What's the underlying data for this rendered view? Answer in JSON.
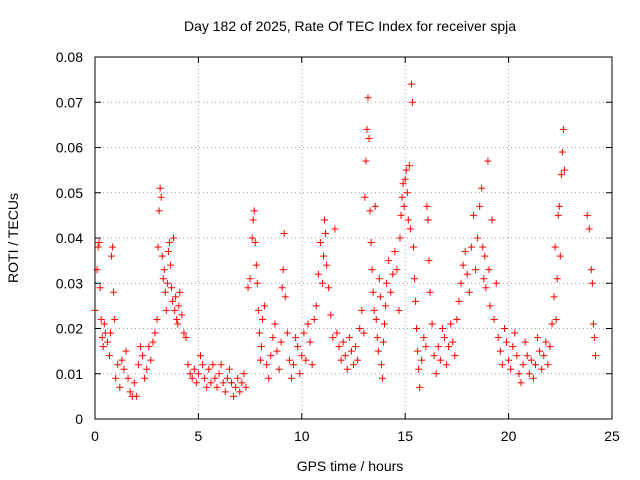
{
  "chart_data": {
    "type": "scatter",
    "title": "Day 182 of 2025, Rate Of TEC Index for receiver spja",
    "xlabel": "GPS time / hours",
    "ylabel": "ROTI / TECUs",
    "xlim": [
      0,
      25
    ],
    "ylim": [
      0,
      0.08
    ],
    "x_ticks": [
      0,
      5,
      10,
      15,
      20,
      25
    ],
    "x_tick_labels": [
      "0",
      "5",
      "10",
      "15",
      "20",
      "25"
    ],
    "y_ticks": [
      0,
      0.01,
      0.02,
      0.03,
      0.04,
      0.05,
      0.06,
      0.07,
      0.08
    ],
    "y_tick_labels": [
      "0",
      "0.01",
      "0.02",
      "0.03",
      "0.04",
      "0.05",
      "0.06",
      "0.07",
      "0.08"
    ],
    "grid": true,
    "marker": "+",
    "marker_color": "#ff0000",
    "series": [
      {
        "name": "ROTI",
        "points": [
          [
            0.0,
            0.024
          ],
          [
            0.1,
            0.033
          ],
          [
            0.15,
            0.038
          ],
          [
            0.2,
            0.039
          ],
          [
            0.25,
            0.029
          ],
          [
            0.3,
            0.022
          ],
          [
            0.35,
            0.018
          ],
          [
            0.4,
            0.016
          ],
          [
            0.45,
            0.021
          ],
          [
            0.5,
            0.019
          ],
          [
            0.6,
            0.017
          ],
          [
            0.7,
            0.014
          ],
          [
            0.75,
            0.019
          ],
          [
            0.8,
            0.036
          ],
          [
            0.85,
            0.038
          ],
          [
            0.9,
            0.028
          ],
          [
            0.95,
            0.022
          ],
          [
            1.0,
            0.009
          ],
          [
            1.1,
            0.012
          ],
          [
            1.2,
            0.007
          ],
          [
            1.3,
            0.013
          ],
          [
            1.4,
            0.011
          ],
          [
            1.5,
            0.015
          ],
          [
            1.6,
            0.009
          ],
          [
            1.7,
            0.006
          ],
          [
            1.8,
            0.005
          ],
          [
            1.9,
            0.008
          ],
          [
            2.0,
            0.005
          ],
          [
            2.1,
            0.012
          ],
          [
            2.2,
            0.016
          ],
          [
            2.3,
            0.014
          ],
          [
            2.4,
            0.009
          ],
          [
            2.5,
            0.011
          ],
          [
            2.6,
            0.016
          ],
          [
            2.7,
            0.013
          ],
          [
            2.8,
            0.017
          ],
          [
            2.9,
            0.019
          ],
          [
            3.0,
            0.022
          ],
          [
            3.05,
            0.038
          ],
          [
            3.1,
            0.046
          ],
          [
            3.15,
            0.051
          ],
          [
            3.2,
            0.049
          ],
          [
            3.25,
            0.036
          ],
          [
            3.3,
            0.031
          ],
          [
            3.35,
            0.033
          ],
          [
            3.4,
            0.028
          ],
          [
            3.45,
            0.024
          ],
          [
            3.5,
            0.03
          ],
          [
            3.55,
            0.037
          ],
          [
            3.6,
            0.039
          ],
          [
            3.65,
            0.034
          ],
          [
            3.7,
            0.029
          ],
          [
            3.75,
            0.026
          ],
          [
            3.8,
            0.04
          ],
          [
            3.85,
            0.024
          ],
          [
            3.9,
            0.027
          ],
          [
            3.95,
            0.022
          ],
          [
            4.0,
            0.021
          ],
          [
            4.05,
            0.025
          ],
          [
            4.1,
            0.028
          ],
          [
            4.2,
            0.023
          ],
          [
            4.3,
            0.019
          ],
          [
            4.4,
            0.018
          ],
          [
            4.5,
            0.012
          ],
          [
            4.6,
            0.01
          ],
          [
            4.7,
            0.009
          ],
          [
            4.8,
            0.011
          ],
          [
            4.9,
            0.008
          ],
          [
            5.0,
            0.01
          ],
          [
            5.1,
            0.014
          ],
          [
            5.2,
            0.012
          ],
          [
            5.3,
            0.009
          ],
          [
            5.4,
            0.007
          ],
          [
            5.5,
            0.011
          ],
          [
            5.6,
            0.008
          ],
          [
            5.7,
            0.012
          ],
          [
            5.8,
            0.009
          ],
          [
            5.9,
            0.007
          ],
          [
            6.0,
            0.01
          ],
          [
            6.1,
            0.012
          ],
          [
            6.2,
            0.008
          ],
          [
            6.3,
            0.006
          ],
          [
            6.4,
            0.009
          ],
          [
            6.5,
            0.011
          ],
          [
            6.6,
            0.008
          ],
          [
            6.7,
            0.005
          ],
          [
            6.8,
            0.007
          ],
          [
            6.9,
            0.009
          ],
          [
            7.0,
            0.006
          ],
          [
            7.1,
            0.008
          ],
          [
            7.2,
            0.01
          ],
          [
            7.3,
            0.007
          ],
          [
            7.4,
            0.029
          ],
          [
            7.5,
            0.031
          ],
          [
            7.6,
            0.04
          ],
          [
            7.65,
            0.044
          ],
          [
            7.7,
            0.046
          ],
          [
            7.75,
            0.039
          ],
          [
            7.8,
            0.034
          ],
          [
            7.85,
            0.03
          ],
          [
            7.9,
            0.024
          ],
          [
            7.95,
            0.019
          ],
          [
            8.0,
            0.013
          ],
          [
            8.05,
            0.016
          ],
          [
            8.1,
            0.022
          ],
          [
            8.2,
            0.025
          ],
          [
            8.3,
            0.012
          ],
          [
            8.4,
            0.009
          ],
          [
            8.5,
            0.014
          ],
          [
            8.6,
            0.018
          ],
          [
            8.7,
            0.021
          ],
          [
            8.8,
            0.015
          ],
          [
            8.9,
            0.011
          ],
          [
            9.0,
            0.017
          ],
          [
            9.05,
            0.029
          ],
          [
            9.1,
            0.033
          ],
          [
            9.15,
            0.041
          ],
          [
            9.2,
            0.027
          ],
          [
            9.3,
            0.019
          ],
          [
            9.4,
            0.013
          ],
          [
            9.5,
            0.009
          ],
          [
            9.6,
            0.012
          ],
          [
            9.7,
            0.018
          ],
          [
            9.8,
            0.016
          ],
          [
            9.9,
            0.01
          ],
          [
            10.0,
            0.014
          ],
          [
            10.1,
            0.019
          ],
          [
            10.2,
            0.013
          ],
          [
            10.3,
            0.021
          ],
          [
            10.4,
            0.017
          ],
          [
            10.5,
            0.012
          ],
          [
            10.6,
            0.022
          ],
          [
            10.7,
            0.025
          ],
          [
            10.8,
            0.032
          ],
          [
            10.9,
            0.039
          ],
          [
            11.0,
            0.03
          ],
          [
            11.05,
            0.036
          ],
          [
            11.1,
            0.044
          ],
          [
            11.15,
            0.041
          ],
          [
            11.2,
            0.034
          ],
          [
            11.3,
            0.029
          ],
          [
            11.4,
            0.023
          ],
          [
            11.5,
            0.018
          ],
          [
            11.6,
            0.042
          ],
          [
            11.7,
            0.019
          ],
          [
            11.8,
            0.016
          ],
          [
            11.9,
            0.013
          ],
          [
            12.0,
            0.017
          ],
          [
            12.1,
            0.014
          ],
          [
            12.2,
            0.011
          ],
          [
            12.3,
            0.018
          ],
          [
            12.4,
            0.015
          ],
          [
            12.5,
            0.012
          ],
          [
            12.6,
            0.016
          ],
          [
            12.7,
            0.013
          ],
          [
            12.8,
            0.02
          ],
          [
            12.9,
            0.024
          ],
          [
            13.0,
            0.019
          ],
          [
            13.05,
            0.049
          ],
          [
            13.1,
            0.057
          ],
          [
            13.15,
            0.064
          ],
          [
            13.2,
            0.071
          ],
          [
            13.25,
            0.062
          ],
          [
            13.3,
            0.046
          ],
          [
            13.35,
            0.039
          ],
          [
            13.4,
            0.033
          ],
          [
            13.45,
            0.028
          ],
          [
            13.5,
            0.024
          ],
          [
            13.55,
            0.047
          ],
          [
            13.6,
            0.022
          ],
          [
            13.65,
            0.018
          ],
          [
            13.7,
            0.015
          ],
          [
            13.75,
            0.031
          ],
          [
            13.8,
            0.027
          ],
          [
            13.85,
            0.012
          ],
          [
            13.9,
            0.009
          ],
          [
            13.95,
            0.017
          ],
          [
            14.0,
            0.021
          ],
          [
            14.05,
            0.025
          ],
          [
            14.1,
            0.03
          ],
          [
            14.2,
            0.035
          ],
          [
            14.3,
            0.028
          ],
          [
            14.4,
            0.032
          ],
          [
            14.5,
            0.037
          ],
          [
            14.6,
            0.033
          ],
          [
            14.7,
            0.024
          ],
          [
            14.75,
            0.04
          ],
          [
            14.8,
            0.045
          ],
          [
            14.85,
            0.049
          ],
          [
            14.9,
            0.052
          ],
          [
            14.95,
            0.047
          ],
          [
            15.0,
            0.053
          ],
          [
            15.05,
            0.055
          ],
          [
            15.1,
            0.05
          ],
          [
            15.15,
            0.044
          ],
          [
            15.2,
            0.056
          ],
          [
            15.25,
            0.042
          ],
          [
            15.3,
            0.074
          ],
          [
            15.35,
            0.07
          ],
          [
            15.4,
            0.038
          ],
          [
            15.45,
            0.031
          ],
          [
            15.5,
            0.026
          ],
          [
            15.55,
            0.02
          ],
          [
            15.6,
            0.015
          ],
          [
            15.65,
            0.011
          ],
          [
            15.7,
            0.007
          ],
          [
            15.8,
            0.013
          ],
          [
            15.9,
            0.018
          ],
          [
            16.0,
            0.016
          ],
          [
            16.05,
            0.047
          ],
          [
            16.1,
            0.044
          ],
          [
            16.15,
            0.035
          ],
          [
            16.2,
            0.028
          ],
          [
            16.3,
            0.021
          ],
          [
            16.4,
            0.014
          ],
          [
            16.5,
            0.01
          ],
          [
            16.6,
            0.016
          ],
          [
            16.7,
            0.013
          ],
          [
            16.8,
            0.02
          ],
          [
            16.9,
            0.018
          ],
          [
            17.0,
            0.012
          ],
          [
            17.1,
            0.016
          ],
          [
            17.2,
            0.021
          ],
          [
            17.3,
            0.017
          ],
          [
            17.4,
            0.014
          ],
          [
            17.5,
            0.022
          ],
          [
            17.6,
            0.026
          ],
          [
            17.7,
            0.03
          ],
          [
            17.8,
            0.034
          ],
          [
            17.9,
            0.037
          ],
          [
            18.0,
            0.032
          ],
          [
            18.1,
            0.028
          ],
          [
            18.2,
            0.038
          ],
          [
            18.3,
            0.045
          ],
          [
            18.4,
            0.033
          ],
          [
            18.5,
            0.04
          ],
          [
            18.6,
            0.047
          ],
          [
            18.7,
            0.051
          ],
          [
            18.75,
            0.038
          ],
          [
            18.8,
            0.031
          ],
          [
            18.85,
            0.036
          ],
          [
            18.9,
            0.029
          ],
          [
            19.0,
            0.057
          ],
          [
            19.05,
            0.033
          ],
          [
            19.1,
            0.025
          ],
          [
            19.2,
            0.044
          ],
          [
            19.3,
            0.022
          ],
          [
            19.4,
            0.03
          ],
          [
            19.5,
            0.018
          ],
          [
            19.6,
            0.015
          ],
          [
            19.7,
            0.012
          ],
          [
            19.8,
            0.02
          ],
          [
            19.9,
            0.017
          ],
          [
            20.0,
            0.013
          ],
          [
            20.1,
            0.011
          ],
          [
            20.2,
            0.016
          ],
          [
            20.3,
            0.019
          ],
          [
            20.4,
            0.014
          ],
          [
            20.5,
            0.01
          ],
          [
            20.6,
            0.008
          ],
          [
            20.7,
            0.012
          ],
          [
            20.8,
            0.017
          ],
          [
            20.9,
            0.014
          ],
          [
            21.0,
            0.01
          ],
          [
            21.1,
            0.013
          ],
          [
            21.2,
            0.009
          ],
          [
            21.3,
            0.012
          ],
          [
            21.4,
            0.018
          ],
          [
            21.5,
            0.015
          ],
          [
            21.6,
            0.011
          ],
          [
            21.7,
            0.014
          ],
          [
            21.8,
            0.017
          ],
          [
            21.9,
            0.012
          ],
          [
            22.0,
            0.016
          ],
          [
            22.1,
            0.021
          ],
          [
            22.2,
            0.027
          ],
          [
            22.25,
            0.038
          ],
          [
            22.3,
            0.022
          ],
          [
            22.35,
            0.031
          ],
          [
            22.4,
            0.045
          ],
          [
            22.45,
            0.047
          ],
          [
            22.5,
            0.036
          ],
          [
            22.55,
            0.054
          ],
          [
            22.6,
            0.059
          ],
          [
            22.65,
            0.064
          ],
          [
            22.7,
            0.055
          ],
          [
            23.8,
            0.045
          ],
          [
            23.9,
            0.042
          ],
          [
            24.0,
            0.033
          ],
          [
            24.05,
            0.03
          ],
          [
            24.1,
            0.021
          ],
          [
            24.15,
            0.018
          ],
          [
            24.2,
            0.014
          ]
        ]
      }
    ]
  }
}
